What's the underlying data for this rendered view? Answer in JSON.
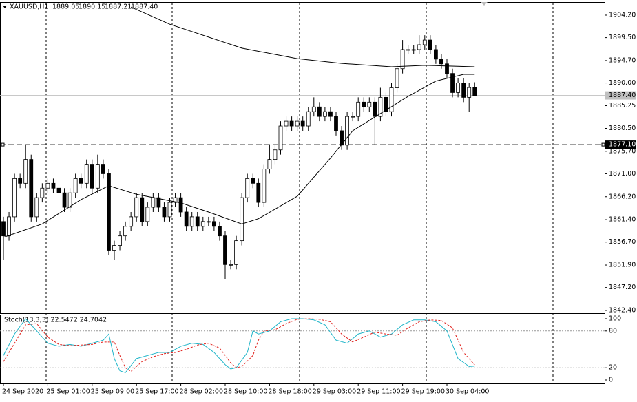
{
  "chart_data": {
    "type": "candlestick",
    "symbol": "XAUUSD,H1",
    "title_values": [
      "1889.05",
      "1890.15",
      "1887.21",
      "1887.40"
    ],
    "categories": [
      "24 Sep 2020",
      null,
      null,
      null,
      null,
      null,
      null,
      null,
      "25 Sep 01:00",
      null,
      null,
      null,
      null,
      null,
      null,
      null,
      "25 Sep 09:00",
      null,
      null,
      null,
      null,
      null,
      null,
      null,
      "25 Sep 17:00",
      null,
      null,
      null,
      null,
      null,
      null,
      null,
      "28 Sep 02:00",
      null,
      null,
      null,
      null,
      null,
      null,
      null,
      "28 Sep 10:00",
      null,
      null,
      null,
      null,
      null,
      null,
      null,
      "28 Sep 18:00",
      null,
      null,
      null,
      null,
      null,
      null,
      null,
      "29 Sep 03:00",
      null,
      null,
      null,
      null,
      null,
      null,
      null,
      "29 Sep 11:00",
      null,
      null,
      null,
      null,
      null,
      null,
      null,
      "29 Sep 19:00",
      null,
      null,
      null,
      null,
      null,
      null,
      null,
      "30 Sep 04:00",
      null,
      null,
      null,
      null,
      null
    ],
    "open": [
      1861,
      1858,
      1862,
      1870,
      1869,
      1874,
      1862,
      1866,
      1868,
      1869,
      1868,
      1867,
      1864,
      1867,
      1870,
      1869,
      1873,
      1868,
      1873,
      1871,
      1855,
      1856,
      1858,
      1860,
      1862,
      1866,
      1861,
      1864,
      1866,
      1864,
      1862,
      1865,
      1866,
      1863,
      1860,
      1862,
      1860,
      1861,
      1861,
      1860,
      1858,
      1852,
      1852,
      1857,
      1866,
      1870,
      1869,
      1865,
      1872,
      1874,
      1876,
      1881,
      1882,
      1881,
      1882,
      1881,
      1884,
      1885,
      1883,
      1884,
      1883,
      1880,
      1877,
      1883,
      1883,
      1886,
      1885,
      1886,
      1883,
      1887,
      1884,
      1889,
      1893,
      1897,
      1897,
      1897,
      1898,
      1899,
      1897,
      1895,
      1894,
      1892,
      1888,
      1890,
      1887,
      1889.05
    ],
    "high": [
      1862,
      1863,
      1871,
      1871,
      1877,
      1875,
      1867,
      1869,
      1870,
      1870,
      1869,
      1868,
      1868,
      1871,
      1871,
      1874,
      1874,
      1875,
      1874,
      1872,
      1857,
      1859,
      1861,
      1863,
      1867,
      1867,
      1865,
      1867,
      1867,
      1865,
      1866,
      1867,
      1867,
      1864,
      1863,
      1863,
      1862,
      1862,
      1862,
      1861,
      1859,
      1853,
      1858,
      1867,
      1871,
      1871,
      1870,
      1873,
      1877,
      1877,
      1882,
      1883,
      1883,
      1883,
      1883,
      1885,
      1887,
      1886,
      1885,
      1885,
      1884,
      1881,
      1884,
      1884,
      1887,
      1887,
      1887,
      1887,
      1889,
      1888,
      1890,
      1894,
      1899,
      1898,
      1898,
      1900,
      1900,
      1900,
      1898,
      1896,
      1895,
      1893,
      1891,
      1891,
      1890,
      1890.15
    ],
    "low": [
      1853,
      1857,
      1861,
      1868,
      1868,
      1861,
      1861,
      1865,
      1867,
      1867,
      1866,
      1863,
      1863,
      1866,
      1868,
      1868,
      1867,
      1867,
      1870,
      1854,
      1853,
      1855,
      1857,
      1859,
      1861,
      1860,
      1860,
      1863,
      1863,
      1861,
      1861,
      1864,
      1862,
      1859,
      1859,
      1859,
      1859,
      1860,
      1859,
      1857,
      1849,
      1851,
      1851,
      1856,
      1865,
      1868,
      1864,
      1864,
      1871,
      1873,
      1875,
      1880,
      1880,
      1880,
      1880,
      1880,
      1883,
      1882,
      1882,
      1882,
      1879,
      1876,
      1876,
      1882,
      1882,
      1884,
      1884,
      1877,
      1882,
      1883,
      1883,
      1888,
      1892,
      1896,
      1896,
      1896,
      1897,
      1896,
      1894,
      1893,
      1891,
      1887,
      1887,
      1886,
      1884,
      1887.21
    ],
    "close": [
      1858,
      1862,
      1870,
      1869,
      1874,
      1862,
      1866,
      1868,
      1869,
      1868,
      1867,
      1864,
      1867,
      1870,
      1869,
      1873,
      1868,
      1873,
      1871,
      1855,
      1856,
      1858,
      1860,
      1862,
      1866,
      1861,
      1864,
      1866,
      1864,
      1862,
      1865,
      1866,
      1863,
      1860,
      1862,
      1860,
      1861,
      1861,
      1860,
      1858,
      1852,
      1852,
      1857,
      1866,
      1870,
      1869,
      1865,
      1872,
      1874,
      1876,
      1881,
      1882,
      1881,
      1882,
      1881,
      1884,
      1885,
      1883,
      1884,
      1883,
      1880,
      1877,
      1883,
      1883,
      1886,
      1885,
      1886,
      1883,
      1887,
      1884,
      1889,
      1893,
      1897,
      1897,
      1897,
      1898,
      1899,
      1897,
      1895,
      1894,
      1892,
      1888,
      1890,
      1887,
      1889.05,
      1887.4
    ],
    "ma_lines": [
      {
        "color": "#000000",
        "x": [
          23,
          30,
          43,
          53,
          61,
          70,
          76,
          85
        ],
        "values": [
          1905.9,
          1902.3,
          1897.3,
          1895.1,
          1894.1,
          1893.4,
          1893.7,
          1893.4
        ]
      },
      {
        "color": "#000000",
        "x": [
          0,
          7,
          14,
          19,
          24,
          32,
          37,
          43,
          46,
          53,
          59,
          63,
          68,
          73,
          78,
          83,
          85
        ],
        "values": [
          1857.7,
          1860.5,
          1865.6,
          1868.5,
          1866.7,
          1864.9,
          1863,
          1860.5,
          1861.6,
          1866.3,
          1874.3,
          1880,
          1883.6,
          1887.2,
          1890.4,
          1891.8,
          1891.8
        ]
      }
    ],
    "ylim": [
      1841.82,
      1906.79
    ],
    "yticks": [
      {
        "value": 1904.2,
        "label": "1904.20"
      },
      {
        "value": 1899.5,
        "label": "1899.50"
      },
      {
        "value": 1894.7,
        "label": "1894.70"
      },
      {
        "value": 1890,
        "label": "1890.00"
      },
      1885.25,
      {
        "value": 1880.5,
        "label": "1880.50"
      },
      {
        "value": 1875.7,
        "label": "1875.70"
      },
      {
        "value": 1871,
        "label": "1871.00"
      },
      {
        "value": 1866.2,
        "label": "1866.20"
      },
      {
        "value": 1861.4,
        "label": "1861.40"
      },
      {
        "value": 1856.7,
        "label": "1856.70"
      },
      {
        "value": 1851.9,
        "label": "1851.90"
      },
      {
        "value": 1847.2,
        "label": "1847.20"
      },
      {
        "value": 1842.4,
        "label": "1842.40"
      }
    ],
    "bid_line": {
      "value": 1887.4,
      "label": "1887.40"
    },
    "hline": {
      "value": 1877.1,
      "label": "1877.10"
    },
    "stochastic": {
      "title": "Stoch(13,3,3) 22.5472 24.7042",
      "ylim": [
        0,
        100
      ],
      "yticks": [
        0,
        20,
        80,
        100
      ],
      "levels": [
        20,
        80
      ],
      "series": [
        {
          "color": "#1fb5c9",
          "x": [
            0,
            2,
            4,
            6,
            8,
            10,
            12,
            14,
            16,
            18,
            19,
            20,
            21,
            22,
            24,
            26,
            28,
            30,
            32,
            34,
            36,
            38,
            40,
            41,
            42,
            44,
            45,
            46,
            48,
            50,
            52,
            54,
            56,
            58,
            60,
            62,
            64,
            66,
            68,
            70,
            72,
            74,
            76,
            78,
            80,
            82,
            84,
            85
          ],
          "values": [
            40,
            75,
            100,
            80,
            60,
            55,
            58,
            55,
            60,
            65,
            75,
            35,
            15,
            12,
            35,
            40,
            45,
            45,
            55,
            60,
            58,
            45,
            25,
            18,
            20,
            45,
            80,
            75,
            80,
            95,
            100,
            100,
            98,
            90,
            65,
            60,
            75,
            80,
            70,
            75,
            90,
            98,
            98,
            95,
            80,
            35,
            22,
            22.5472
          ]
        },
        {
          "color": "#e0201b",
          "x": [
            0,
            2,
            4,
            6,
            8,
            10,
            12,
            14,
            16,
            18,
            20,
            21,
            22,
            23,
            25,
            27,
            29,
            31,
            33,
            35,
            37,
            39,
            41,
            42,
            43,
            45,
            46,
            47,
            49,
            51,
            53,
            55,
            57,
            59,
            61,
            63,
            65,
            67,
            69,
            71,
            73,
            75,
            77,
            79,
            81,
            83,
            85
          ],
          "values": [
            30,
            60,
            90,
            92,
            70,
            58,
            56,
            57,
            58,
            62,
            62,
            40,
            20,
            14,
            30,
            38,
            43,
            45,
            50,
            57,
            60,
            52,
            28,
            20,
            22,
            40,
            65,
            80,
            82,
            92,
            99,
            100,
            99,
            95,
            75,
            62,
            70,
            78,
            75,
            73,
            85,
            95,
            98,
            97,
            85,
            45,
            24.7042
          ]
        }
      ]
    }
  }
}
